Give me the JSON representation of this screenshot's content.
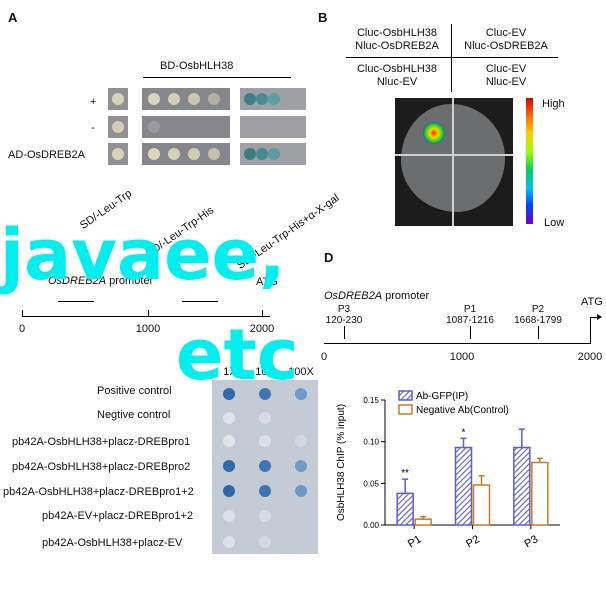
{
  "panels": {
    "a": "A",
    "b": "B",
    "c": "C",
    "d": "D"
  },
  "panel_a": {
    "bd_label": "BD-OsbHLH38",
    "row_labels": [
      "+",
      "-",
      "AD-OsDREB2A"
    ],
    "media": [
      "SD/-Leu-Trp",
      "SD/-Leu-Trp-His",
      "SD/-Leu-Trp-His+α-X-gal"
    ]
  },
  "panel_b": {
    "cells": [
      "Cluc-OsbHLH38\nNluc-OsDREB2A",
      "Cluc-EV\nNluc-OsDREB2A",
      "Cluc-OsbHLH38\nNluc-EV",
      "Cluc-EV\nNluc-EV"
    ],
    "scale_high": "High",
    "scale_low": "Low"
  },
  "panel_c": {
    "promoter": "OsDREB2A",
    "promoter_suffix": " promoter",
    "atg": "ATG",
    "axis": [
      "0",
      "1000",
      "2000"
    ],
    "dilutions": [
      "1X",
      "10X",
      "100X"
    ],
    "rows": [
      "Positive control",
      "Negtive control",
      "pb42A-OsbHLH38+placz-DREBpro1",
      "pb42A-OsbHLH38+placz-DREBpro2",
      "pb42A-OsbHLH38+placz-DREBpro1+2",
      "pb42A-EV+placz-DREBpro1+2",
      "pb42A-OsbHLH38+placz-EV"
    ]
  },
  "panel_d": {
    "promoter": "OsDREB2A",
    "promoter_suffix": " promoter",
    "atg": "ATG",
    "axis": [
      "0",
      "1000",
      "2000"
    ],
    "sites": [
      {
        "name": "P3",
        "range": "120-230"
      },
      {
        "name": "P1",
        "range": "1087-1216"
      },
      {
        "name": "P2",
        "range": "1668-1799"
      }
    ]
  },
  "chart_data": {
    "type": "bar",
    "categories": [
      "P1",
      "P2",
      "P3"
    ],
    "series": [
      {
        "name": "Ab-GFP(IP)",
        "values": [
          0.038,
          0.093,
          0.093
        ],
        "errors": [
          0.017,
          0.011,
          0.022
        ],
        "color": "#5b5fc7"
      },
      {
        "name": "Negative Ab(Control)",
        "values": [
          0.007,
          0.048,
          0.075
        ],
        "errors": [
          0.003,
          0.011,
          0.005
        ],
        "color": "#c57b2a"
      }
    ],
    "significance": [
      "**",
      "*",
      ""
    ],
    "ylabel": "OsbHLH38 ChIP (% input)",
    "yticks": [
      "0.00",
      "0.05",
      "0.10",
      "0.15"
    ],
    "ylim": [
      0,
      0.15
    ],
    "legend": "top-left"
  },
  "overlay": {
    "line1": "javaee,",
    "line2": "etc"
  }
}
